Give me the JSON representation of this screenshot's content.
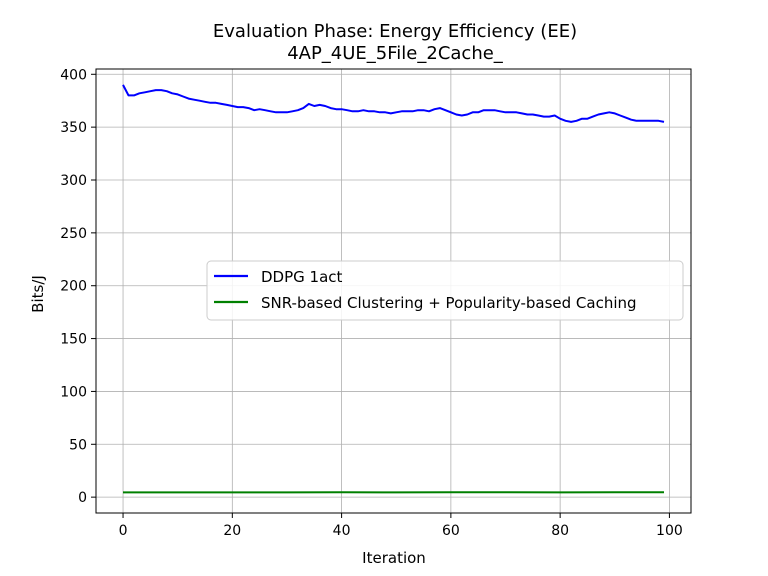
{
  "chart_data": {
    "type": "line",
    "title": "Evaluation Phase: Energy Efficiency (EE)",
    "subtitle": "4AP_4UE_5File_2Cache_",
    "xlabel": "Iteration",
    "ylabel": "Bits/J",
    "xlim": [
      -4.95,
      103.95
    ],
    "ylim": [
      -15,
      405
    ],
    "xticks": [
      0,
      20,
      40,
      60,
      80,
      100
    ],
    "yticks": [
      0,
      50,
      100,
      150,
      200,
      250,
      300,
      350,
      400
    ],
    "grid": true,
    "legend_position": "center-right",
    "series": [
      {
        "name": "DDPG 1act",
        "color": "#0000ff",
        "x": [
          0,
          1,
          2,
          3,
          4,
          5,
          6,
          7,
          8,
          9,
          10,
          11,
          12,
          13,
          14,
          15,
          16,
          17,
          18,
          19,
          20,
          21,
          22,
          23,
          24,
          25,
          26,
          27,
          28,
          29,
          30,
          31,
          32,
          33,
          34,
          35,
          36,
          37,
          38,
          39,
          40,
          41,
          42,
          43,
          44,
          45,
          46,
          47,
          48,
          49,
          50,
          51,
          52,
          53,
          54,
          55,
          56,
          57,
          58,
          59,
          60,
          61,
          62,
          63,
          64,
          65,
          66,
          67,
          68,
          69,
          70,
          71,
          72,
          73,
          74,
          75,
          76,
          77,
          78,
          79,
          80,
          81,
          82,
          83,
          84,
          85,
          86,
          87,
          88,
          89,
          90,
          91,
          92,
          93,
          94,
          95,
          96,
          97,
          98,
          99
        ],
        "y": [
          390,
          380,
          380,
          382,
          383,
          384,
          385,
          385,
          384,
          382,
          381,
          379,
          377,
          376,
          375,
          374,
          373,
          373,
          372,
          371,
          370,
          369,
          369,
          368,
          366,
          367,
          366,
          365,
          364,
          364,
          364,
          365,
          366,
          368,
          372,
          370,
          371,
          370,
          368,
          367,
          367,
          366,
          365,
          365,
          366,
          365,
          365,
          364,
          364,
          363,
          364,
          365,
          365,
          365,
          366,
          366,
          365,
          367,
          368,
          366,
          364,
          362,
          361,
          362,
          364,
          364,
          366,
          366,
          366,
          365,
          364,
          364,
          364,
          363,
          362,
          362,
          361,
          360,
          360,
          361,
          358,
          356,
          355,
          356,
          358,
          358,
          360,
          362,
          363,
          364,
          363,
          361,
          359,
          357,
          356,
          356,
          356,
          356,
          356,
          355
        ]
      },
      {
        "name": "SNR-based Clustering + Popularity-based Caching",
        "color": "#008000",
        "x": [
          0,
          10,
          20,
          30,
          40,
          50,
          60,
          70,
          80,
          90,
          99
        ],
        "y": [
          4.5,
          4.5,
          4.5,
          4.5,
          4.6,
          4.5,
          4.6,
          4.6,
          4.5,
          4.7,
          4.6
        ]
      }
    ]
  }
}
